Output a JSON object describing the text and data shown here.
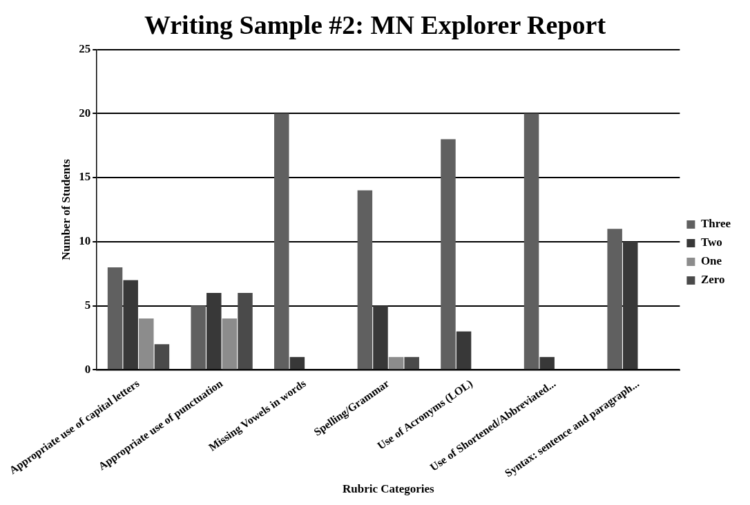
{
  "chart_data": {
    "type": "bar",
    "title": "Writing Sample #2: MN Explorer Report",
    "xlabel": "Rubric Categories",
    "ylabel": "Number of Students",
    "categories": [
      "Appropriate use of capital letters",
      "Appropriate use of punctuation",
      "Missing Vowels in words",
      "Spelling/Grammar",
      "Use of Acronyms (LOL)",
      "Use of Shortened/Abbreviated...",
      "Syntax: sentence and paragraph..."
    ],
    "series": [
      {
        "name": "Three",
        "color": "#606060",
        "values": [
          8,
          5,
          20,
          14,
          18,
          20,
          11
        ]
      },
      {
        "name": "Two",
        "color": "#383838",
        "values": [
          7,
          6,
          1,
          5,
          3,
          1,
          10
        ]
      },
      {
        "name": "One",
        "color": "#8c8c8c",
        "values": [
          4,
          4,
          0,
          1,
          0,
          0,
          0
        ]
      },
      {
        "name": "Zero",
        "color": "#4a4a4a",
        "values": [
          2,
          6,
          0,
          1,
          0,
          0,
          0
        ]
      }
    ],
    "ylim": [
      0,
      25
    ],
    "yticks": [
      0,
      5,
      10,
      15,
      20,
      25
    ],
    "grid": "y",
    "legend": "right"
  }
}
